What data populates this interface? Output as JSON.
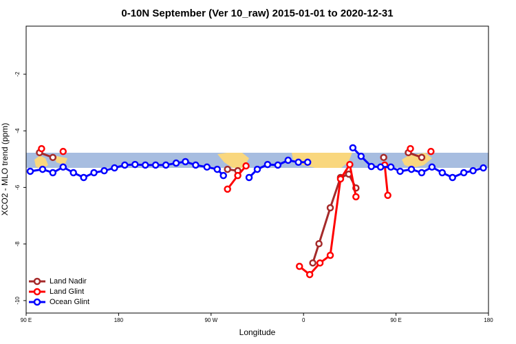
{
  "chart_data": {
    "type": "line",
    "title": "0-10N September (Ver 10_raw)   2015-01-01 to 2020-12-31",
    "x_label": "Longitude",
    "y_label": "XCO2 - MLO trend (ppm)",
    "xlim": [
      90,
      540
    ],
    "xticks": [
      {
        "value": 90,
        "label": "90 E"
      },
      {
        "value": 180,
        "label": "180"
      },
      {
        "value": 270,
        "label": "90 W"
      },
      {
        "value": 360,
        "label": "0"
      },
      {
        "value": 450,
        "label": "90 E"
      },
      {
        "value": 540,
        "label": "180"
      }
    ],
    "ylim": [
      -10.44,
      -0.3
    ],
    "yticks": [
      -2,
      -4,
      -6,
      -8,
      -10
    ],
    "legend": "bottomleft",
    "series": [
      {
        "name": "Land Nadir",
        "color": "#a52a2a",
        "x": [
          103,
          116,
          null,
          286,
          296,
          null,
          369,
          375,
          386,
          396,
          404,
          411,
          null,
          438,
          null,
          462,
          475
        ],
        "values": [
          -4.77,
          -4.94,
          null,
          -5.36,
          -5.41,
          null,
          -8.67,
          -7.99,
          -6.72,
          -5.65,
          -5.53,
          -6.02,
          null,
          -4.94,
          null,
          -4.77,
          -4.94
        ]
      },
      {
        "name": "Land Glint",
        "color": "#ff0000",
        "x": [
          105,
          null,
          126,
          null,
          286,
          296,
          304,
          null,
          356,
          366,
          376,
          386,
          396,
          405,
          411,
          null,
          439,
          442,
          null,
          464,
          null,
          484
        ],
        "values": [
          -4.63,
          null,
          -4.73,
          null,
          -6.06,
          -5.58,
          -5.24,
          null,
          -8.79,
          -9.08,
          -8.67,
          -8.4,
          -5.7,
          -5.19,
          -6.33,
          null,
          -5.21,
          -6.28,
          null,
          -4.63,
          null,
          -4.73
        ]
      },
      {
        "name": "Ocean Glint",
        "color": "#0000ff",
        "x": [
          94,
          106,
          116,
          126,
          136,
          146,
          156,
          166,
          176,
          186,
          196,
          206,
          216,
          226,
          236,
          245,
          255,
          266,
          276,
          282,
          null,
          307,
          315,
          325,
          335,
          345,
          355,
          364,
          null,
          408,
          416,
          426,
          435,
          445,
          454,
          465,
          475,
          485,
          495,
          505,
          516,
          525,
          535
        ],
        "values": [
          -5.43,
          -5.36,
          -5.48,
          -5.28,
          -5.48,
          -5.65,
          -5.48,
          -5.41,
          -5.31,
          -5.21,
          -5.19,
          -5.21,
          -5.21,
          -5.21,
          -5.14,
          -5.09,
          -5.21,
          -5.28,
          -5.36,
          -5.58,
          null,
          -5.65,
          -5.36,
          -5.19,
          -5.21,
          -5.04,
          -5.11,
          -5.11,
          null,
          -4.6,
          -4.9,
          -5.26,
          -5.28,
          -5.28,
          -5.43,
          -5.36,
          -5.48,
          -5.28,
          -5.48,
          -5.65,
          -5.48,
          -5.41,
          -5.31
        ]
      }
    ]
  }
}
